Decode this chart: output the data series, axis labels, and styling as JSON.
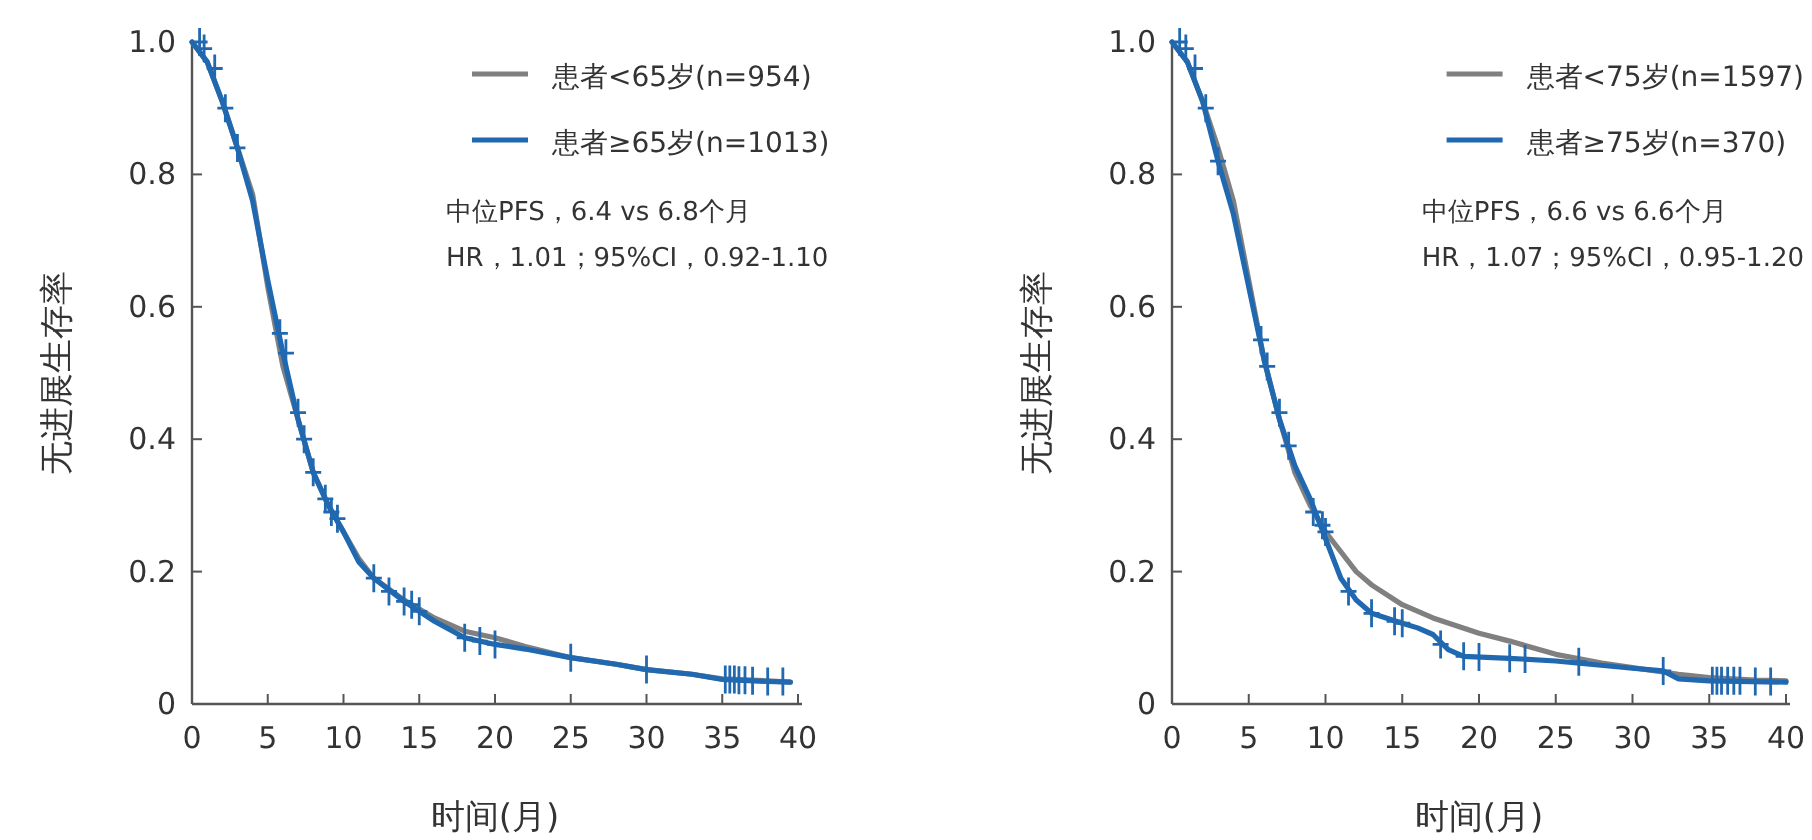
{
  "chart_data": [
    {
      "type": "line",
      "xlabel": "时间(月)",
      "ylabel": "无进展生存率",
      "xlim": [
        0,
        40
      ],
      "xticks": [
        0,
        5,
        10,
        15,
        20,
        25,
        30,
        35,
        40
      ],
      "ylim": [
        0,
        1
      ],
      "yticks": [
        0,
        0.2,
        0.4,
        0.6,
        0.8,
        {
          "value": 1,
          "label": "1.0"
        }
      ],
      "legend": "top right",
      "grid": false,
      "annotations": [
        "中位PFS，6.4 vs 6.8个月",
        "HR，1.01；95%CI，0.92-1.10"
      ],
      "series": [
        {
          "name": "患者<65岁(n=954)",
          "color": "#808080",
          "x": [
            0,
            1,
            2,
            3,
            4,
            5,
            6,
            7,
            8,
            9,
            10,
            11,
            12,
            14,
            16,
            18,
            20,
            22,
            25,
            28,
            30,
            33,
            35,
            38,
            39.5
          ],
          "values": [
            1,
            0.97,
            0.91,
            0.84,
            0.77,
            0.63,
            0.51,
            0.43,
            0.35,
            0.3,
            0.26,
            0.22,
            0.19,
            0.157,
            0.13,
            0.11,
            0.1,
            0.087,
            0.07,
            0.06,
            0.052,
            0.045,
            0.038,
            0.035,
            0.033
          ]
        },
        {
          "name": "患者≥65岁(n=1013)",
          "color": "#2068b0",
          "x": [
            0,
            1,
            2,
            3,
            4,
            5,
            6,
            7,
            8,
            9,
            10,
            11,
            12,
            14,
            16,
            18,
            20,
            22,
            25,
            28,
            30,
            33,
            35,
            38,
            39.5
          ],
          "values": [
            1,
            0.97,
            0.91,
            0.84,
            0.76,
            0.64,
            0.53,
            0.43,
            0.35,
            0.3,
            0.26,
            0.215,
            0.19,
            0.155,
            0.125,
            0.1,
            0.09,
            0.083,
            0.07,
            0.06,
            0.052,
            0.045,
            0.037,
            0.034,
            0.033
          ]
        },
        {
          "type": "scatter",
          "marker": "cross",
          "color": "#2068b0",
          "x": [
            0.5,
            0.8,
            1.5,
            2.2,
            3,
            5.8,
            6.2,
            7,
            7.4,
            8,
            8.8,
            9.2,
            9.6,
            12,
            13,
            14,
            14.5,
            15,
            18,
            19,
            20,
            25,
            30,
            35.2,
            35.5,
            35.8,
            36.1,
            36.5,
            37,
            38,
            39
          ],
          "values": [
            1,
            0.99,
            0.96,
            0.9,
            0.84,
            0.56,
            0.53,
            0.44,
            0.4,
            0.35,
            0.31,
            0.29,
            0.28,
            0.19,
            0.17,
            0.155,
            0.15,
            0.14,
            0.1,
            0.095,
            0.09,
            0.07,
            0.052,
            0.037,
            0.037,
            0.037,
            0.036,
            0.036,
            0.035,
            0.034,
            0.034
          ]
        }
      ]
    },
    {
      "type": "line",
      "xlabel": "时间(月)",
      "ylabel": "无进展生存率",
      "xlim": [
        0,
        40
      ],
      "xticks": [
        0,
        5,
        10,
        15,
        20,
        25,
        30,
        35,
        40
      ],
      "ylim": [
        0,
        1
      ],
      "yticks": [
        0,
        0.2,
        0.4,
        0.6,
        0.8,
        {
          "value": 1,
          "label": "1.0"
        }
      ],
      "legend": "top right",
      "grid": false,
      "annotations": [
        "中位PFS，6.6 vs 6.6个月",
        "HR，1.07；95%CI，0.95-1.20"
      ],
      "series": [
        {
          "name": "患者<75岁(n=1597)",
          "color": "#808080",
          "x": [
            0,
            1,
            2,
            3,
            4,
            5,
            6,
            7,
            8,
            9,
            10,
            11,
            12,
            13,
            15,
            17,
            20,
            22,
            25,
            28,
            30,
            33,
            35,
            38,
            40
          ],
          "values": [
            1,
            0.97,
            0.91,
            0.84,
            0.76,
            0.64,
            0.52,
            0.43,
            0.35,
            0.3,
            0.26,
            0.23,
            0.2,
            0.18,
            0.15,
            0.13,
            0.107,
            0.095,
            0.075,
            0.062,
            0.055,
            0.045,
            0.04,
            0.036,
            0.035
          ]
        },
        {
          "name": "患者≥75岁(n=370)",
          "color": "#2068b0",
          "x": [
            0,
            1,
            2,
            3,
            4,
            5,
            6,
            7,
            8,
            9,
            10,
            11,
            12,
            13,
            15,
            16,
            17,
            18,
            19,
            22,
            25,
            30,
            32,
            33,
            35,
            40
          ],
          "values": [
            1,
            0.97,
            0.91,
            0.82,
            0.74,
            0.63,
            0.52,
            0.43,
            0.36,
            0.31,
            0.25,
            0.19,
            0.157,
            0.137,
            0.122,
            0.115,
            0.105,
            0.082,
            0.072,
            0.069,
            0.065,
            0.054,
            0.05,
            0.038,
            0.035,
            0.033
          ]
        },
        {
          "type": "scatter",
          "marker": "cross",
          "color": "#2068b0",
          "x": [
            0.5,
            0.9,
            1.5,
            2.2,
            3,
            5.8,
            6.2,
            7,
            7.6,
            9.2,
            9.8,
            10,
            11.5,
            13,
            14.5,
            15,
            17.5,
            19,
            20,
            22,
            23,
            26.5,
            32,
            35.2,
            35.5,
            35.8,
            36.2,
            36.6,
            37,
            38,
            39
          ],
          "values": [
            1,
            0.99,
            0.96,
            0.9,
            0.82,
            0.55,
            0.51,
            0.44,
            0.39,
            0.29,
            0.27,
            0.26,
            0.17,
            0.137,
            0.125,
            0.122,
            0.09,
            0.072,
            0.071,
            0.069,
            0.068,
            0.064,
            0.05,
            0.035,
            0.035,
            0.035,
            0.035,
            0.035,
            0.035,
            0.034,
            0.034
          ]
        }
      ]
    }
  ]
}
